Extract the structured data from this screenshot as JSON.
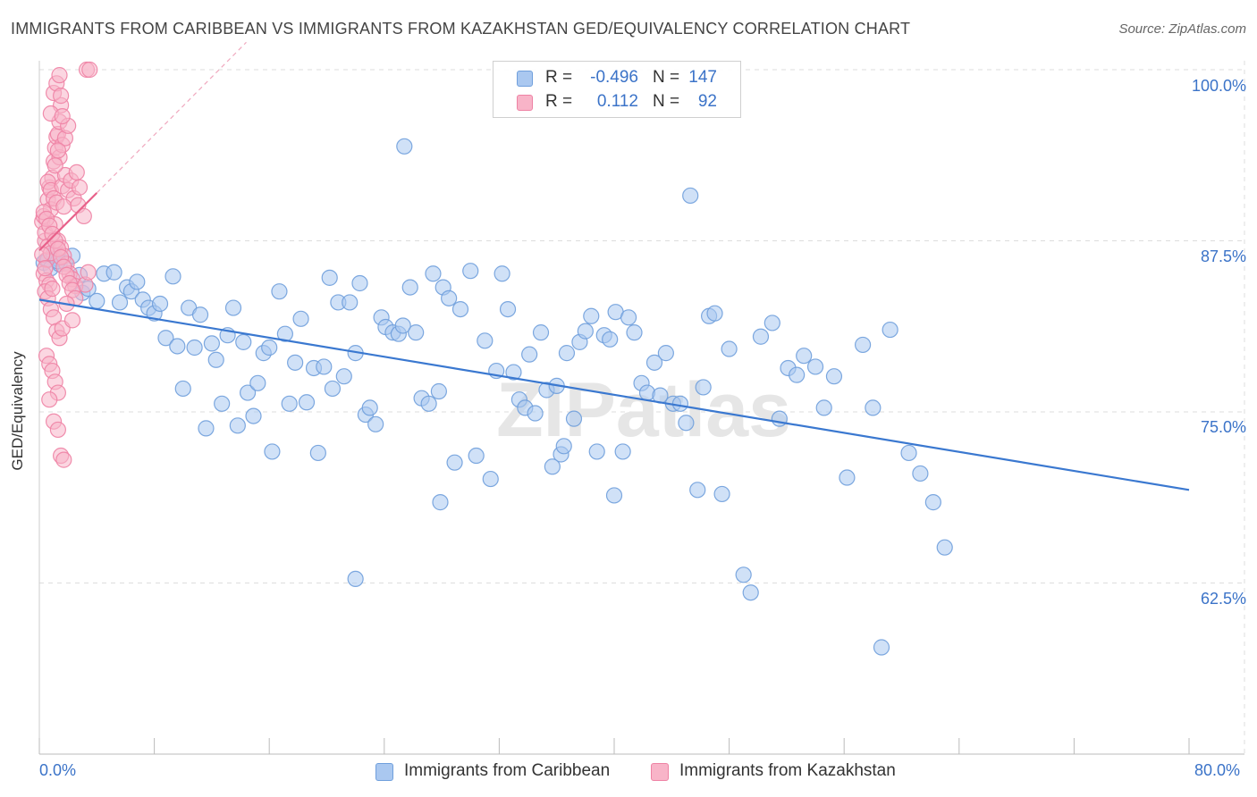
{
  "title": "IMMIGRANTS FROM CARIBBEAN VS IMMIGRANTS FROM KAZAKHSTAN GED/EQUIVALENCY CORRELATION CHART",
  "source": "Source: ZipAtlas.com",
  "watermark": "ZIPatlas",
  "legend": {
    "rows": [
      {
        "r_label": "R =",
        "r_value": "-0.496",
        "n_label": "N =",
        "n_value": "147",
        "color": "#aac8f0"
      },
      {
        "r_label": "R =",
        "r_value": "0.112",
        "n_label": "N =",
        "n_value": "92",
        "color": "#f8b4c8"
      }
    ]
  },
  "bottom_legend": [
    {
      "label": "Immigrants from Caribbean",
      "color": "#aac8f0"
    },
    {
      "label": "Immigrants from Kazakhstan",
      "color": "#f8b4c8"
    }
  ],
  "colors": {
    "caribbean_fill": "#aac8f0",
    "caribbean_stroke": "#6f9fdc",
    "caribbean_line": "#3a78d0",
    "kazakhstan_fill": "#f8b4c8",
    "kazakhstan_stroke": "#ee82a4",
    "kazakhstan_line": "#e8608a",
    "tick_label": "#3b73c8",
    "grid": "#dddddd"
  },
  "chart_data": {
    "type": "scatter",
    "title": "IMMIGRANTS FROM CARIBBEAN VS IMMIGRANTS FROM KAZAKHSTAN GED/EQUIVALENCY CORRELATION CHART",
    "xlabel": "",
    "ylabel": "GED/Equivalency",
    "xlim": [
      0,
      80
    ],
    "ylim": [
      50,
      100
    ],
    "x_tick_labels": [
      "0.0%",
      "80.0%"
    ],
    "y_ticks": [
      62.5,
      75.0,
      87.5,
      100.0
    ],
    "y_tick_labels": [
      "62.5%",
      "75.0%",
      "87.5%",
      "100.0%"
    ],
    "grid": true,
    "legend_position": "top-center",
    "series": [
      {
        "name": "Immigrants from Caribbean",
        "R": -0.496,
        "N": 147,
        "trend": {
          "x": [
            0,
            80
          ],
          "y": [
            83.2,
            69.3
          ]
        },
        "points": [
          [
            0.3,
            85.9
          ],
          [
            0.6,
            86.1
          ],
          [
            0.8,
            85.5
          ],
          [
            1.0,
            86.5
          ],
          [
            1.2,
            86.2
          ],
          [
            1.4,
            85.8
          ],
          [
            1.8,
            85.9
          ],
          [
            2.3,
            86.4
          ],
          [
            2.8,
            85.0
          ],
          [
            1.3,
            86.0
          ],
          [
            3.0,
            83.7
          ],
          [
            3.4,
            84.0
          ],
          [
            4.0,
            83.1
          ],
          [
            4.5,
            85.1
          ],
          [
            5.2,
            85.2
          ],
          [
            5.6,
            83.0
          ],
          [
            6.1,
            84.1
          ],
          [
            6.4,
            83.8
          ],
          [
            6.8,
            84.5
          ],
          [
            7.2,
            83.2
          ],
          [
            7.6,
            82.6
          ],
          [
            8.0,
            82.2
          ],
          [
            8.4,
            82.9
          ],
          [
            8.8,
            80.4
          ],
          [
            9.3,
            84.9
          ],
          [
            9.6,
            79.8
          ],
          [
            10.0,
            76.7
          ],
          [
            10.4,
            82.6
          ],
          [
            10.8,
            79.7
          ],
          [
            11.2,
            82.1
          ],
          [
            11.6,
            73.8
          ],
          [
            12.0,
            80.0
          ],
          [
            12.3,
            78.8
          ],
          [
            12.7,
            75.6
          ],
          [
            13.1,
            80.6
          ],
          [
            13.5,
            82.6
          ],
          [
            13.8,
            74.0
          ],
          [
            14.2,
            80.1
          ],
          [
            14.5,
            76.4
          ],
          [
            14.9,
            74.7
          ],
          [
            15.2,
            77.1
          ],
          [
            15.6,
            79.3
          ],
          [
            16.0,
            79.7
          ],
          [
            16.2,
            72.1
          ],
          [
            16.7,
            83.8
          ],
          [
            17.1,
            80.7
          ],
          [
            17.4,
            75.6
          ],
          [
            17.8,
            78.6
          ],
          [
            18.2,
            81.8
          ],
          [
            18.6,
            75.7
          ],
          [
            19.1,
            78.2
          ],
          [
            19.4,
            72.0
          ],
          [
            19.8,
            78.3
          ],
          [
            20.2,
            84.8
          ],
          [
            20.4,
            76.7
          ],
          [
            20.8,
            83.0
          ],
          [
            21.2,
            77.6
          ],
          [
            21.6,
            83.0
          ],
          [
            22.0,
            79.3
          ],
          [
            22.3,
            84.4
          ],
          [
            22.7,
            74.8
          ],
          [
            23.0,
            75.3
          ],
          [
            23.4,
            74.1
          ],
          [
            23.8,
            81.9
          ],
          [
            24.1,
            81.2
          ],
          [
            24.6,
            80.8
          ],
          [
            25.0,
            80.7
          ],
          [
            25.3,
            81.3
          ],
          [
            25.8,
            84.1
          ],
          [
            26.2,
            80.8
          ],
          [
            26.6,
            76.0
          ],
          [
            27.1,
            75.6
          ],
          [
            27.4,
            85.1
          ],
          [
            27.8,
            76.5
          ],
          [
            28.1,
            84.1
          ],
          [
            28.5,
            83.3
          ],
          [
            28.9,
            71.3
          ],
          [
            29.3,
            82.5
          ],
          [
            30.0,
            85.3
          ],
          [
            30.4,
            71.8
          ],
          [
            31.0,
            80.2
          ],
          [
            31.4,
            70.1
          ],
          [
            31.8,
            78.0
          ],
          [
            32.2,
            85.1
          ],
          [
            32.6,
            82.5
          ],
          [
            33.0,
            77.9
          ],
          [
            33.4,
            75.9
          ],
          [
            33.8,
            75.3
          ],
          [
            34.1,
            79.2
          ],
          [
            34.5,
            74.9
          ],
          [
            34.9,
            80.8
          ],
          [
            35.3,
            76.6
          ],
          [
            35.7,
            71.0
          ],
          [
            36.0,
            76.9
          ],
          [
            36.3,
            71.9
          ],
          [
            36.7,
            79.3
          ],
          [
            37.2,
            74.5
          ],
          [
            37.6,
            80.1
          ],
          [
            38.0,
            80.9
          ],
          [
            38.4,
            82.0
          ],
          [
            38.8,
            72.1
          ],
          [
            39.3,
            80.6
          ],
          [
            39.7,
            80.3
          ],
          [
            40.1,
            82.3
          ],
          [
            40.6,
            72.1
          ],
          [
            41.0,
            81.9
          ],
          [
            41.4,
            80.8
          ],
          [
            41.9,
            77.1
          ],
          [
            42.3,
            76.4
          ],
          [
            42.8,
            78.6
          ],
          [
            43.2,
            76.2
          ],
          [
            43.6,
            79.3
          ],
          [
            44.1,
            75.6
          ],
          [
            44.6,
            75.6
          ],
          [
            45.0,
            74.2
          ],
          [
            45.3,
            90.8
          ],
          [
            45.8,
            69.3
          ],
          [
            46.2,
            76.8
          ],
          [
            46.6,
            82.0
          ],
          [
            47.0,
            82.2
          ],
          [
            47.5,
            69.0
          ],
          [
            48.0,
            79.6
          ],
          [
            49.0,
            63.1
          ],
          [
            49.5,
            61.8
          ],
          [
            50.2,
            80.5
          ],
          [
            51.0,
            81.5
          ],
          [
            51.5,
            74.5
          ],
          [
            52.1,
            78.2
          ],
          [
            52.7,
            77.7
          ],
          [
            53.2,
            79.1
          ],
          [
            54.6,
            75.3
          ],
          [
            55.3,
            77.6
          ],
          [
            56.2,
            70.2
          ],
          [
            57.3,
            79.9
          ],
          [
            58.0,
            75.3
          ],
          [
            59.2,
            81.0
          ],
          [
            60.5,
            72.0
          ],
          [
            61.3,
            70.5
          ],
          [
            62.2,
            68.4
          ],
          [
            63.0,
            65.1
          ],
          [
            58.6,
            57.8
          ],
          [
            22.0,
            62.8
          ],
          [
            25.4,
            94.4
          ],
          [
            27.9,
            68.4
          ],
          [
            40.0,
            68.9
          ],
          [
            54.0,
            78.3
          ],
          [
            36.5,
            72.5
          ]
        ]
      },
      {
        "name": "Immigrants from Kazakhstan",
        "R": 0.112,
        "N": 92,
        "trend": {
          "x": [
            0,
            4
          ],
          "y": [
            86.8,
            91.0
          ]
        },
        "trend_extended": {
          "x": [
            4,
            14.4
          ],
          "y": [
            91.0,
            102.0
          ]
        },
        "points": [
          [
            0.2,
            88.9
          ],
          [
            0.3,
            89.3
          ],
          [
            0.4,
            87.5
          ],
          [
            0.5,
            86.1
          ],
          [
            0.6,
            90.5
          ],
          [
            0.7,
            91.4
          ],
          [
            0.8,
            89.8
          ],
          [
            0.3,
            85.1
          ],
          [
            0.5,
            84.6
          ],
          [
            0.7,
            84.3
          ],
          [
            0.4,
            88.1
          ],
          [
            0.6,
            87.1
          ],
          [
            0.8,
            86.6
          ],
          [
            0.9,
            92.1
          ],
          [
            1.0,
            93.3
          ],
          [
            1.1,
            94.3
          ],
          [
            1.2,
            95.1
          ],
          [
            1.3,
            95.3
          ],
          [
            1.4,
            96.2
          ],
          [
            1.5,
            97.4
          ],
          [
            0.8,
            96.8
          ],
          [
            1.0,
            98.3
          ],
          [
            1.2,
            99.0
          ],
          [
            1.4,
            99.6
          ],
          [
            3.3,
            100.0
          ],
          [
            3.5,
            100.0
          ],
          [
            0.6,
            91.8
          ],
          [
            0.8,
            91.2
          ],
          [
            1.0,
            90.6
          ],
          [
            1.2,
            90.3
          ],
          [
            1.6,
            91.5
          ],
          [
            1.8,
            92.3
          ],
          [
            2.0,
            91.2
          ],
          [
            2.2,
            91.9
          ],
          [
            2.4,
            90.6
          ],
          [
            2.6,
            92.5
          ],
          [
            2.8,
            91.4
          ],
          [
            1.1,
            88.7
          ],
          [
            1.3,
            87.5
          ],
          [
            1.5,
            87.0
          ],
          [
            1.7,
            86.4
          ],
          [
            1.9,
            85.8
          ],
          [
            2.1,
            85.1
          ],
          [
            2.3,
            84.7
          ],
          [
            2.5,
            84.2
          ],
          [
            3.2,
            84.3
          ],
          [
            3.4,
            85.2
          ],
          [
            0.4,
            83.8
          ],
          [
            0.6,
            83.3
          ],
          [
            0.8,
            82.5
          ],
          [
            1.0,
            81.9
          ],
          [
            1.2,
            80.9
          ],
          [
            1.4,
            80.4
          ],
          [
            1.6,
            81.1
          ],
          [
            0.5,
            79.1
          ],
          [
            0.7,
            78.5
          ],
          [
            0.9,
            78.0
          ],
          [
            1.1,
            77.2
          ],
          [
            1.3,
            76.4
          ],
          [
            0.7,
            75.9
          ],
          [
            1.0,
            74.3
          ],
          [
            1.3,
            73.7
          ],
          [
            1.5,
            71.8
          ],
          [
            1.7,
            71.5
          ],
          [
            0.3,
            89.6
          ],
          [
            0.5,
            89.1
          ],
          [
            0.7,
            88.6
          ],
          [
            0.9,
            88.0
          ],
          [
            1.1,
            87.5
          ],
          [
            1.3,
            86.9
          ],
          [
            1.5,
            86.3
          ],
          [
            1.7,
            85.6
          ],
          [
            1.9,
            85.0
          ],
          [
            2.1,
            84.4
          ],
          [
            2.3,
            83.9
          ],
          [
            2.5,
            83.3
          ],
          [
            1.4,
            93.6
          ],
          [
            1.6,
            94.5
          ],
          [
            1.8,
            95.0
          ],
          [
            2.0,
            95.9
          ],
          [
            1.1,
            93.0
          ],
          [
            1.3,
            94.1
          ],
          [
            2.3,
            81.7
          ],
          [
            1.9,
            82.9
          ],
          [
            0.9,
            84.0
          ],
          [
            1.7,
            90.0
          ],
          [
            2.7,
            90.1
          ],
          [
            3.1,
            89.3
          ],
          [
            0.2,
            86.5
          ],
          [
            0.4,
            85.5
          ],
          [
            1.5,
            98.1
          ],
          [
            1.6,
            96.6
          ]
        ]
      }
    ]
  }
}
